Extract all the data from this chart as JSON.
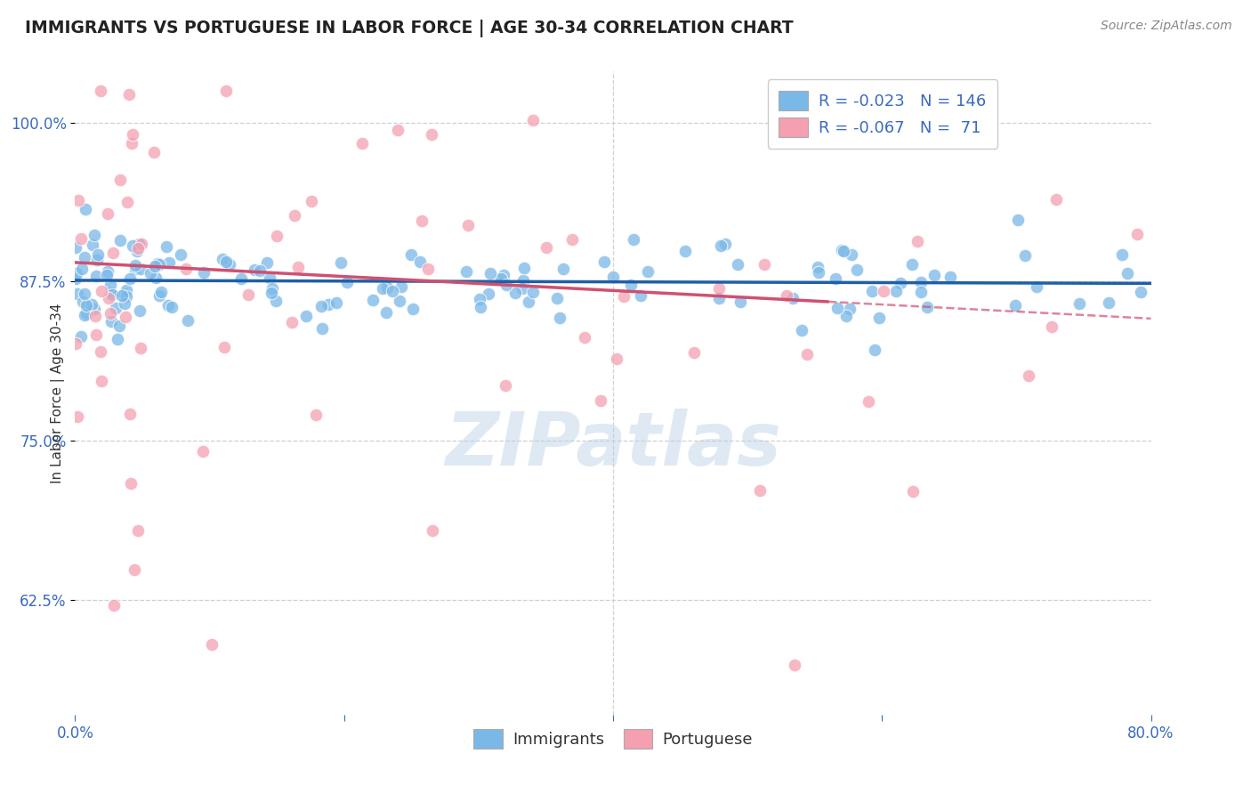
{
  "title": "IMMIGRANTS VS PORTUGUESE IN LABOR FORCE | AGE 30-34 CORRELATION CHART",
  "source": "Source: ZipAtlas.com",
  "ylabel": "In Labor Force | Age 30-34",
  "xlim": [
    0.0,
    0.8
  ],
  "ylim": [
    0.535,
    1.04
  ],
  "xtick_positions": [
    0.0,
    0.2,
    0.4,
    0.6,
    0.8
  ],
  "xtick_labels": [
    "0.0%",
    "",
    "",
    "",
    "80.0%"
  ],
  "ytick_positions": [
    0.625,
    0.75,
    0.875,
    1.0
  ],
  "ytick_labels": [
    "62.5%",
    "75.0%",
    "87.5%",
    "100.0%"
  ],
  "blue_color": "#7ab8e8",
  "pink_color": "#f4a0b0",
  "blue_line_color": "#1f5fa6",
  "pink_line_color": "#d05070",
  "blue_r": -0.023,
  "pink_r": -0.067,
  "blue_n": 146,
  "pink_n": 71,
  "watermark": "ZIPatlas",
  "background_color": "#ffffff",
  "grid_color": "#d0d0d0",
  "blue_seed": 12,
  "pink_seed": 99
}
